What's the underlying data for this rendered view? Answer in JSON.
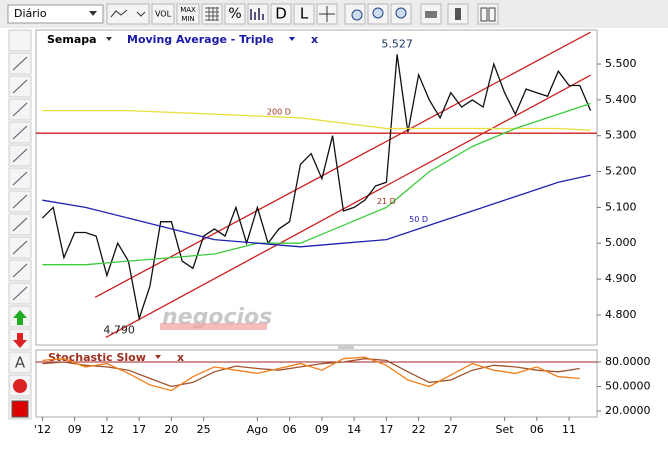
{
  "toolbar": {
    "period": "Diário",
    "vol": "VOL",
    "max": "MAX",
    "min": "MIN",
    "percent": "%",
    "d": "D",
    "l": "L"
  },
  "sidebar": {
    "text_tool": "A"
  },
  "chart_data": [
    {
      "type": "line",
      "symbol": "Semapa",
      "indicator": "Moving Average - Triple",
      "close": "x",
      "watermark": "negocios",
      "xlim": [
        -0.6,
        51.6
      ],
      "ylim": [
        4.716,
        5.595
      ],
      "xticks": [
        {
          "value": 0,
          "label": "'12"
        },
        {
          "value": 3,
          "label": "09"
        },
        {
          "value": 6,
          "label": "12"
        },
        {
          "value": 9,
          "label": "17"
        },
        {
          "value": 12,
          "label": "20"
        },
        {
          "value": 15,
          "label": "25"
        },
        {
          "value": 20,
          "label": "Ago"
        },
        {
          "value": 23,
          "label": "06"
        },
        {
          "value": 26,
          "label": "09"
        },
        {
          "value": 29,
          "label": "14"
        },
        {
          "value": 32,
          "label": "17"
        },
        {
          "value": 35,
          "label": "22"
        },
        {
          "value": 38,
          "label": "27"
        },
        {
          "value": 43,
          "label": "Set"
        },
        {
          "value": 46,
          "label": "06"
        },
        {
          "value": 49,
          "label": "11"
        }
      ],
      "yticks": [
        {
          "value": 4.8,
          "label": "4.800"
        },
        {
          "value": 4.9,
          "label": "4.900"
        },
        {
          "value": 5.0,
          "label": "5.000"
        },
        {
          "value": 5.1,
          "label": "5.100"
        },
        {
          "value": 5.2,
          "label": "5.200"
        },
        {
          "value": 5.3,
          "label": "5.300"
        },
        {
          "value": 5.4,
          "label": "5.400"
        },
        {
          "value": 5.5,
          "label": "5.500"
        }
      ],
      "series": [
        {
          "color": "#111111",
          "x": [
            0,
            1,
            2,
            3,
            4,
            5,
            6,
            7,
            8,
            9,
            10,
            11,
            12,
            13,
            14,
            15,
            16,
            17,
            18,
            19,
            20,
            21,
            22,
            23,
            24,
            25,
            26,
            27,
            28,
            29,
            30,
            31,
            32,
            33,
            34,
            35,
            36,
            37,
            38,
            39,
            40,
            41,
            42,
            43,
            44,
            45,
            46,
            47,
            48,
            49,
            50,
            51
          ],
          "values": [
            5.07,
            5.1,
            4.96,
            5.03,
            5.03,
            5.02,
            4.91,
            5.0,
            4.95,
            4.79,
            4.88,
            5.06,
            5.06,
            4.95,
            4.93,
            5.02,
            5.04,
            5.02,
            5.1,
            5.0,
            5.1,
            5.0,
            5.04,
            5.06,
            5.22,
            5.25,
            5.18,
            5.3,
            5.09,
            5.1,
            5.12,
            5.16,
            5.17,
            5.527,
            5.31,
            5.47,
            5.4,
            5.35,
            5.42,
            5.38,
            5.4,
            5.38,
            5.5,
            5.42,
            5.36,
            5.43,
            5.42,
            5.41,
            5.48,
            5.44,
            5.44,
            5.37
          ]
        },
        {
          "name": "200 D",
          "color": "#e8e040",
          "x": [
            0,
            8,
            16,
            24,
            32,
            40,
            48,
            51
          ],
          "values": [
            5.37,
            5.37,
            5.36,
            5.35,
            5.32,
            5.32,
            5.32,
            5.315
          ]
        },
        {
          "name": "21 D",
          "color": "#3ccc3c",
          "x": [
            0,
            4,
            8,
            12,
            16,
            20,
            24,
            28,
            32,
            36,
            40,
            44,
            48,
            51
          ],
          "values": [
            4.94,
            4.94,
            4.95,
            4.96,
            4.97,
            5.0,
            5.0,
            5.05,
            5.1,
            5.2,
            5.27,
            5.32,
            5.36,
            5.39
          ]
        },
        {
          "name": "50 D",
          "color": "#2020b0",
          "x": [
            0,
            4,
            8,
            12,
            16,
            20,
            24,
            28,
            32,
            36,
            40,
            44,
            48,
            51
          ],
          "values": [
            5.12,
            5.1,
            5.07,
            5.04,
            5.01,
            5.0,
            4.99,
            5.0,
            5.01,
            5.05,
            5.09,
            5.13,
            5.17,
            5.19
          ]
        }
      ],
      "trendlines": [
        {
          "x": [
            4.9,
            51
          ],
          "y": [
            4.849,
            5.589
          ]
        },
        {
          "x": [
            5.9,
            51
          ],
          "y": [
            4.737,
            5.469
          ]
        },
        {
          "x": [
            -0.6,
            51.6
          ],
          "y": [
            5.307,
            5.307
          ]
        }
      ],
      "annotations": [
        {
          "text": "5.527",
          "x": 33,
          "y": 5.527
        },
        {
          "text": "4.790",
          "x": 9,
          "y": 4.79
        }
      ]
    },
    {
      "type": "line",
      "title": "Stochastic Slow",
      "close": "x",
      "xlim": [
        -0.6,
        51.6
      ],
      "ylim": [
        12.7,
        94.7
      ],
      "yticks": [
        {
          "value": 80,
          "label": "80.0000"
        },
        {
          "value": 50,
          "label": "50.0000"
        },
        {
          "value": 20,
          "label": "20.0000"
        }
      ],
      "hlines": [
        80
      ],
      "series": [
        {
          "color": "#a0522d",
          "x": [
            0,
            2,
            4,
            6,
            8,
            10,
            12,
            14,
            16,
            18,
            20,
            22,
            24,
            26,
            28,
            30,
            32,
            34,
            36,
            38,
            40,
            42,
            44,
            46,
            48,
            50
          ],
          "values": [
            78,
            80,
            76,
            74,
            70,
            60,
            50,
            55,
            68,
            75,
            72,
            70,
            74,
            78,
            80,
            84,
            82,
            68,
            55,
            58,
            70,
            76,
            74,
            70,
            68,
            72
          ]
        },
        {
          "color": "#f07f1a",
          "x": [
            0,
            2,
            4,
            6,
            8,
            10,
            12,
            14,
            16,
            18,
            20,
            22,
            24,
            26,
            28,
            30,
            32,
            34,
            36,
            38,
            40,
            42,
            44,
            46,
            48,
            50
          ],
          "values": [
            82,
            84,
            74,
            78,
            66,
            52,
            45,
            62,
            74,
            70,
            66,
            72,
            78,
            70,
            84,
            86,
            76,
            58,
            50,
            64,
            78,
            70,
            66,
            74,
            62,
            60
          ]
        }
      ]
    }
  ]
}
